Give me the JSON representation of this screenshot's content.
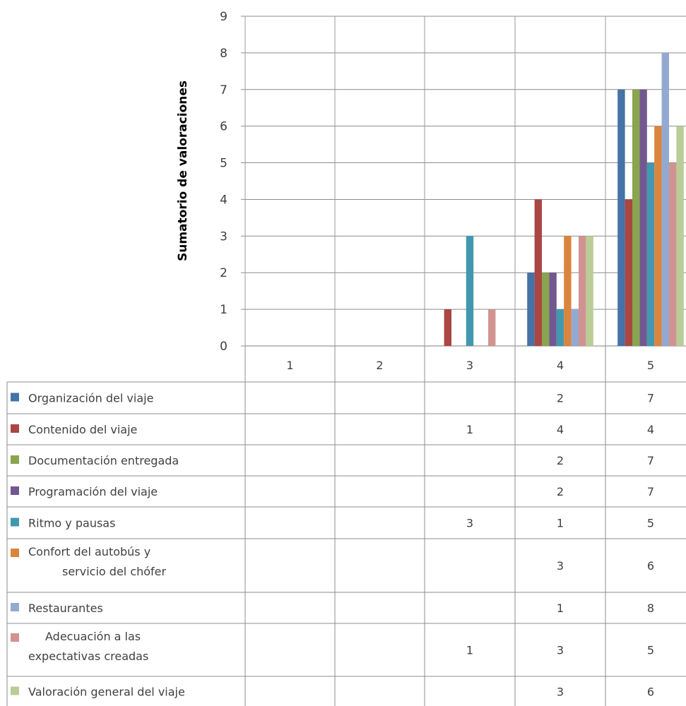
{
  "chart_data": {
    "type": "bar",
    "ylabel": "Sumatorio de valoraciones",
    "ylim": [
      0,
      9
    ],
    "yticks": [
      "0",
      "1",
      "2",
      "3",
      "4",
      "5",
      "6",
      "7",
      "8",
      "9"
    ],
    "categories": [
      "1",
      "2",
      "3",
      "4",
      "5"
    ],
    "grid": true,
    "legend": "data-table-below",
    "series": [
      {
        "name": "Organización del viaje",
        "color": "#4572A7",
        "values": [
          null,
          null,
          null,
          2,
          7
        ]
      },
      {
        "name": "Contenido del viaje",
        "color": "#AA4643",
        "values": [
          null,
          null,
          1,
          4,
          4
        ]
      },
      {
        "name": "Documentación entregada",
        "color": "#89A54E",
        "values": [
          null,
          null,
          null,
          2,
          7
        ]
      },
      {
        "name": "Programación del viaje",
        "color": "#71588F",
        "values": [
          null,
          null,
          null,
          2,
          7
        ]
      },
      {
        "name": "Ritmo y pausas",
        "color": "#4198AF",
        "values": [
          null,
          null,
          3,
          1,
          5
        ]
      },
      {
        "name": "Confort del autobús y servicio del chófer",
        "name_lines": [
          "Confort del autobús y",
          "servicio del chófer"
        ],
        "color": "#DB843D",
        "values": [
          null,
          null,
          null,
          3,
          6
        ]
      },
      {
        "name": "Restaurantes",
        "color": "#93A9CF",
        "values": [
          null,
          null,
          null,
          1,
          8
        ]
      },
      {
        "name": "Adecuación a las expectativas creadas",
        "name_lines": [
          "Adecuación a las",
          "expectativas creadas"
        ],
        "color": "#D19392",
        "values": [
          null,
          null,
          1,
          3,
          5
        ]
      },
      {
        "name": "Valoración general del viaje",
        "color": "#B9CD96",
        "values": [
          null,
          null,
          null,
          3,
          6
        ]
      }
    ]
  }
}
